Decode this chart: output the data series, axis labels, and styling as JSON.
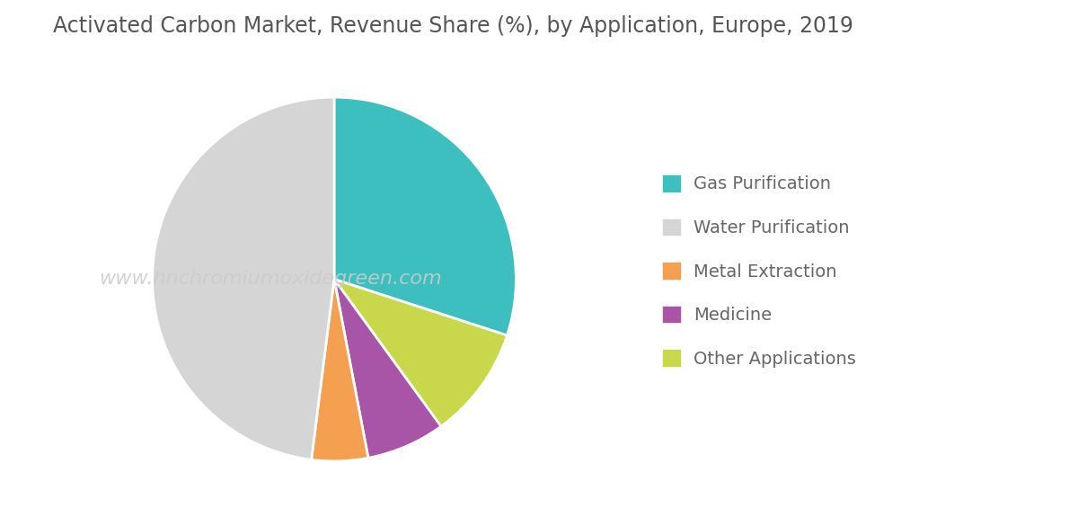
{
  "title": "Activated Carbon Market, Revenue Share (%), by Application, Europe, 2019",
  "slices": [
    {
      "label": "Gas Purification",
      "value": 30,
      "color": "#3DBFBF"
    },
    {
      "label": "Other Applications",
      "value": 10,
      "color": "#C8D84A"
    },
    {
      "label": "Medicine",
      "value": 7,
      "color": "#A855A8"
    },
    {
      "label": "Metal Extraction",
      "value": 5,
      "color": "#F5A050"
    },
    {
      "label": "Water Purification",
      "value": 48,
      "color": "#D5D5D5"
    }
  ],
  "startangle": 90,
  "background_color": "#FFFFFF",
  "title_fontsize": 17,
  "title_color": "#555555",
  "legend_fontsize": 14,
  "legend_color": "#666666",
  "watermark": "www.hnchromiumoxidegreen.com",
  "watermark_color": "#CCCCCC",
  "watermark_alpha": 0.85,
  "watermark_fontsize": 16
}
